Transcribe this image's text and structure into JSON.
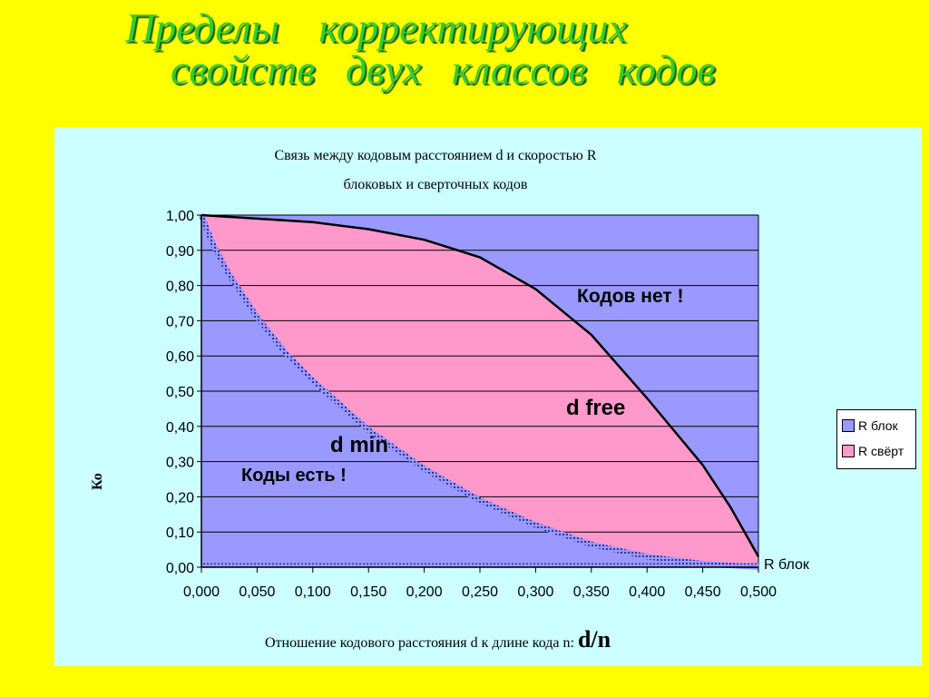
{
  "slide": {
    "title_line1": "Пределы корректирующих",
    "title_line2": "свойств двух классов кодов"
  },
  "chart_data": {
    "type": "area",
    "title_line1": "Связь между кодовым расстоянием d и скоростью R",
    "title_line2": "блоковых и сверточных кодов",
    "xlabel_prefix": "Отношение кодового расстояния d к длине кода n:",
    "xlabel_suffix": "d/n",
    "ylabel_visible": "Ко",
    "x_ticks": [
      "0,000",
      "0,050",
      "0,100",
      "0,150",
      "0,200",
      "0,250",
      "0,300",
      "0,350",
      "0,400",
      "0,450",
      "0,500"
    ],
    "y_ticks": [
      "0,00",
      "0,10",
      "0,20",
      "0,30",
      "0,40",
      "0,50",
      "0,60",
      "0,70",
      "0,80",
      "0,90",
      "1,00"
    ],
    "xlim": [
      0,
      0.5
    ],
    "ylim": [
      0,
      1
    ],
    "grid": "horizontal",
    "legend_position": "right",
    "series": [
      {
        "name": "R блок",
        "color": "#9999ff",
        "x": [
          0,
          0.01,
          0.025,
          0.05,
          0.075,
          0.1,
          0.15,
          0.2,
          0.25,
          0.3,
          0.35,
          0.4,
          0.45,
          0.5
        ],
        "y": [
          1.0,
          0.92,
          0.83,
          0.71,
          0.61,
          0.53,
          0.39,
          0.28,
          0.19,
          0.12,
          0.065,
          0.03,
          0.01,
          0.0
        ]
      },
      {
        "name": "R свёрт",
        "color": "#ff99cc",
        "x": [
          0,
          0.05,
          0.1,
          0.15,
          0.2,
          0.25,
          0.3,
          0.35,
          0.4,
          0.45,
          0.475,
          0.5
        ],
        "y": [
          1.0,
          0.99,
          0.98,
          0.96,
          0.93,
          0.88,
          0.79,
          0.66,
          0.48,
          0.29,
          0.17,
          0.03
        ]
      }
    ],
    "annotations": [
      "Кодов нет !",
      "d free",
      "d min",
      "Коды есть !"
    ],
    "axis_tail_label": "R блок"
  }
}
